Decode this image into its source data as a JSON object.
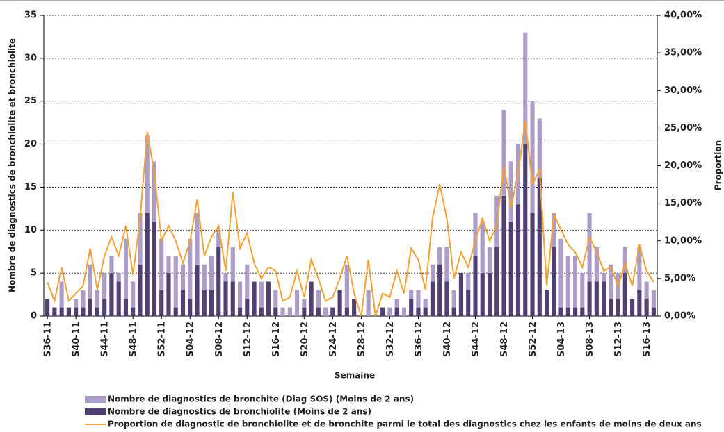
{
  "chart_data": {
    "type": "bar",
    "stacked": true,
    "x_label": "Semaine",
    "y_label": "Nombre de diagnostics de bronchiolite et bronchiolite",
    "y2_label": "Proportion",
    "categories": [
      "S36-11",
      null,
      null,
      null,
      "S40-11",
      null,
      null,
      null,
      "S44-11",
      null,
      null,
      null,
      "S48-11",
      null,
      null,
      null,
      "S52-11",
      null,
      null,
      null,
      "S04-12",
      null,
      null,
      null,
      "S08-12",
      null,
      null,
      null,
      "S12-12",
      null,
      null,
      null,
      "S16-12",
      null,
      null,
      null,
      "S20-12",
      null,
      null,
      null,
      "S24-12",
      null,
      null,
      null,
      "S28-12",
      null,
      null,
      null,
      "S32-12",
      null,
      null,
      null,
      "S36-12",
      null,
      null,
      null,
      "S40-12",
      null,
      null,
      null,
      "S44-12",
      null,
      null,
      null,
      "S48-12",
      null,
      null,
      null,
      "S52-12",
      null,
      null,
      null,
      "S04-13",
      null,
      null,
      null,
      "S08-13",
      null,
      null,
      null,
      "S12-13",
      null,
      null,
      null,
      "S16-13",
      null
    ],
    "series": [
      {
        "name": "Nombre de diagnostics de bronchite (Diag SOS) (Moins de 2 ans)",
        "type": "bar",
        "color": "#ab9dc8",
        "values": [
          0,
          0,
          3,
          0,
          1,
          2,
          4,
          2,
          3,
          2,
          1,
          7,
          3,
          6,
          9,
          7,
          6,
          2,
          6,
          3,
          7,
          6,
          3,
          4,
          2,
          1,
          4,
          3,
          4,
          0,
          3,
          0,
          2,
          1,
          1,
          3,
          1,
          0,
          2,
          1,
          0,
          0,
          5,
          0,
          0,
          3,
          0,
          0,
          1,
          1,
          1,
          1,
          2,
          1,
          2,
          2,
          4,
          2,
          0,
          2,
          5,
          6,
          3,
          6,
          10,
          7,
          7,
          13,
          13,
          7,
          0,
          4,
          8,
          6,
          6,
          4,
          8,
          4,
          1,
          4,
          3,
          3,
          0,
          5,
          2,
          2
        ]
      },
      {
        "name": "Nombre de diagnostics de bronchiolite (Moins de 2 ans)",
        "type": "bar",
        "color": "#4f4173",
        "values": [
          2,
          1,
          1,
          1,
          1,
          1,
          2,
          1,
          2,
          5,
          4,
          2,
          1,
          6,
          12,
          11,
          3,
          5,
          1,
          3,
          2,
          6,
          3,
          3,
          8,
          4,
          4,
          1,
          2,
          4,
          1,
          4,
          1,
          0,
          0,
          0,
          1,
          4,
          1,
          0,
          1,
          3,
          1,
          2,
          0,
          0,
          0,
          1,
          0,
          1,
          0,
          2,
          1,
          1,
          4,
          6,
          4,
          1,
          5,
          3,
          7,
          5,
          5,
          8,
          14,
          11,
          13,
          20,
          12,
          16,
          3,
          8,
          1,
          1,
          1,
          1,
          4,
          4,
          4,
          2,
          2,
          5,
          2,
          3,
          2,
          1
        ]
      },
      {
        "name": "Proportion de diagnostic de bronchiolite et de bronchite parmi le total des diagnostics chez les enfants de moins de deux ans",
        "type": "line",
        "axis": "y2",
        "color": "#f5a030",
        "values": [
          4.5,
          2,
          6.5,
          2,
          3,
          4,
          9,
          3.5,
          8,
          10.5,
          8,
          12,
          5.5,
          13,
          24.5,
          19,
          10,
          12,
          10,
          7,
          10,
          15.5,
          8,
          10.5,
          12,
          6,
          16.5,
          9,
          11,
          7,
          5,
          6.5,
          6,
          2,
          2.5,
          6,
          2.5,
          7.5,
          5,
          2,
          2.5,
          5,
          8,
          3,
          0,
          7.5,
          0,
          3,
          2.5,
          6,
          3,
          9,
          7.5,
          3.5,
          13,
          17.5,
          13,
          5,
          8.5,
          6.5,
          10,
          13,
          10,
          12,
          20,
          14.5,
          19,
          26,
          17.5,
          19.5,
          4,
          13.5,
          11.5,
          9.5,
          8.5,
          6.5,
          10.5,
          8.5,
          6,
          6.5,
          4,
          7,
          4,
          9.5,
          6,
          4.5
        ]
      }
    ],
    "ylim": [
      0,
      35
    ],
    "yticks": [
      0,
      5,
      10,
      15,
      20,
      25,
      30,
      35
    ],
    "y2lim": [
      0,
      40
    ],
    "y2ticks": [
      {
        "value": 0,
        "label": "0,00%"
      },
      {
        "value": 5,
        "label": "5,00%"
      },
      {
        "value": 10,
        "label": "10,00%"
      },
      {
        "value": 15,
        "label": "15,00%"
      },
      {
        "value": 20,
        "label": "20,00%"
      },
      {
        "value": 25,
        "label": "25,00%"
      },
      {
        "value": 30,
        "label": "30,00%"
      },
      {
        "value": 35,
        "label": "35,00%"
      },
      {
        "value": 40,
        "label": "40,00%"
      }
    ],
    "grid": true,
    "legend": "bottom"
  }
}
